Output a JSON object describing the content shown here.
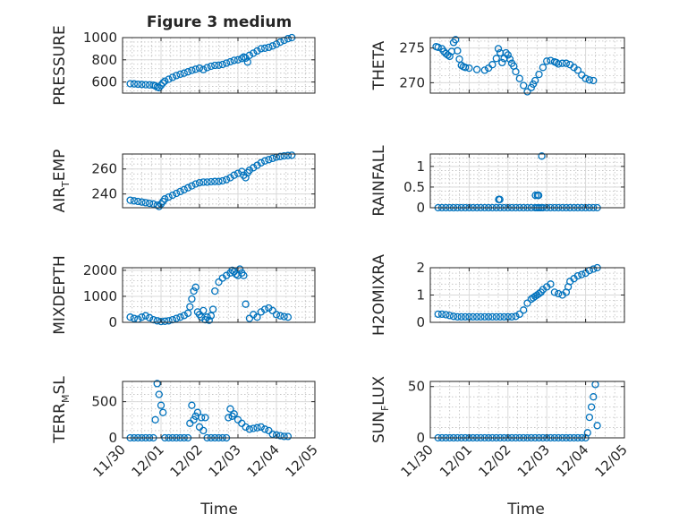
{
  "figure": {
    "title": "Figure 3 medium",
    "time_label": "Time"
  },
  "colors": {
    "marker": "#0072BD",
    "axis": "#262626"
  },
  "chart_data": [
    {
      "type": "scatter",
      "ylabel": "PRESSURE",
      "xlim": [
        "11/30",
        "12/05"
      ],
      "ylim": [
        500,
        1000
      ],
      "yticks": [
        600,
        800,
        1000
      ],
      "xticks": [
        "11/30",
        "12/01",
        "12/02",
        "12/03",
        "12/04",
        "12/05"
      ],
      "show_xticklabels": false,
      "title": "Figure 3 medium",
      "xlabel": "",
      "grid": "on (major + minor)",
      "x": [
        0.2,
        0.3,
        0.4,
        0.5,
        0.6,
        0.7,
        0.8,
        0.85,
        0.9,
        0.95,
        1.0,
        1.05,
        1.1,
        1.2,
        1.3,
        1.4,
        1.5,
        1.6,
        1.7,
        1.8,
        1.9,
        2.0,
        2.1,
        2.2,
        2.3,
        2.4,
        2.5,
        2.6,
        2.7,
        2.8,
        2.9,
        3.0,
        3.1,
        3.15,
        3.2,
        3.25,
        3.3,
        3.4,
        3.5,
        3.6,
        3.7,
        3.8,
        3.9,
        4.0,
        4.1,
        4.2,
        4.3,
        4.4
      ],
      "y": [
        585,
        583,
        580,
        578,
        576,
        574,
        572,
        565,
        555,
        548,
        570,
        592,
        608,
        625,
        642,
        658,
        670,
        680,
        692,
        705,
        715,
        725,
        712,
        730,
        742,
        750,
        752,
        758,
        770,
        782,
        795,
        800,
        812,
        825,
        815,
        780,
        840,
        860,
        880,
        900,
        905,
        912,
        925,
        940,
        960,
        975,
        990,
        1000
      ]
    },
    {
      "type": "scatter",
      "ylabel": "THETA",
      "xlim": [
        "11/30",
        "12/05"
      ],
      "ylim": [
        268.5,
        276.5
      ],
      "yticks": [
        270,
        275
      ],
      "show_xticklabels": false,
      "x": [
        0.15,
        0.2,
        0.3,
        0.35,
        0.4,
        0.45,
        0.5,
        0.55,
        0.6,
        0.65,
        0.7,
        0.75,
        0.8,
        0.85,
        0.9,
        1.0,
        1.2,
        1.4,
        1.5,
        1.6,
        1.7,
        1.75,
        1.8,
        1.85,
        1.9,
        1.95,
        2.0,
        2.05,
        2.1,
        2.15,
        2.2,
        2.3,
        2.4,
        2.5,
        2.6,
        2.65,
        2.7,
        2.8,
        2.9,
        3.0,
        3.1,
        3.2,
        3.25,
        3.3,
        3.4,
        3.5,
        3.6,
        3.7,
        3.8,
        3.9,
        4.0,
        4.1,
        4.2
      ],
      "y": [
        275.2,
        275.1,
        274.9,
        274.5,
        274.2,
        274.0,
        273.8,
        274.5,
        275.8,
        276.2,
        274.6,
        273.4,
        272.5,
        272.3,
        272.2,
        272.1,
        271.9,
        271.8,
        272.1,
        272.6,
        273.5,
        274.9,
        274.3,
        272.9,
        273.5,
        274.3,
        274.0,
        273.4,
        272.8,
        272.4,
        271.6,
        270.6,
        269.6,
        268.7,
        269.3,
        269.8,
        270.3,
        271.2,
        272.2,
        273.1,
        273.2,
        273.0,
        272.9,
        272.7,
        272.8,
        272.8,
        272.6,
        272.2,
        271.8,
        271.1,
        270.6,
        270.4,
        270.3
      ]
    },
    {
      "type": "scatter",
      "ylabel": "AIR_TEMP",
      "xlim": [
        "11/30",
        "12/05"
      ],
      "ylim": [
        229,
        272
      ],
      "yticks": [
        240,
        260
      ],
      "show_xticklabels": false,
      "x": [
        0.2,
        0.3,
        0.4,
        0.5,
        0.6,
        0.7,
        0.8,
        0.9,
        0.95,
        1.0,
        1.05,
        1.1,
        1.2,
        1.3,
        1.4,
        1.5,
        1.6,
        1.7,
        1.8,
        1.9,
        2.0,
        2.1,
        2.2,
        2.3,
        2.4,
        2.5,
        2.6,
        2.7,
        2.8,
        2.9,
        3.0,
        3.1,
        3.15,
        3.2,
        3.25,
        3.3,
        3.4,
        3.5,
        3.6,
        3.7,
        3.8,
        3.9,
        4.0,
        4.1,
        4.2,
        4.3,
        4.4
      ],
      "y": [
        235,
        234.5,
        234,
        233.5,
        233,
        232.5,
        232,
        231,
        230,
        232,
        234,
        236,
        237.5,
        239,
        240.5,
        242,
        243.5,
        245,
        246.5,
        248,
        249,
        249.5,
        249.5,
        249.8,
        250,
        250,
        250.5,
        251.5,
        253,
        255,
        256.5,
        258,
        255,
        253,
        257,
        259,
        261,
        263,
        265,
        266.5,
        267.5,
        268.5,
        269.5,
        270,
        270.5,
        270.8,
        271
      ]
    },
    {
      "type": "scatter",
      "ylabel": "RAINFALL",
      "xlim": [
        "11/30",
        "12/05"
      ],
      "ylim": [
        0,
        1.3
      ],
      "yticks": [
        0,
        0.5,
        1
      ],
      "show_xticklabels": false,
      "x": [
        0.2,
        0.3,
        0.4,
        0.5,
        0.6,
        0.7,
        0.8,
        0.9,
        1.0,
        1.1,
        1.2,
        1.3,
        1.4,
        1.5,
        1.6,
        1.7,
        1.8,
        1.9,
        2.0,
        2.1,
        2.2,
        2.3,
        2.4,
        2.5,
        2.6,
        2.7,
        2.75,
        2.8,
        2.85,
        2.9,
        3.0,
        3.1,
        3.2,
        3.3,
        3.4,
        3.5,
        3.6,
        3.7,
        3.8,
        3.9,
        4.0,
        4.1,
        4.2,
        4.3,
        1.76,
        1.79,
        2.71,
        2.76,
        2.79,
        2.87
      ],
      "y": [
        0,
        0,
        0,
        0,
        0,
        0,
        0,
        0,
        0,
        0,
        0,
        0,
        0,
        0,
        0,
        0,
        0,
        0,
        0,
        0,
        0,
        0,
        0,
        0,
        0,
        0,
        0,
        0,
        0,
        0,
        0,
        0,
        0,
        0,
        0,
        0,
        0,
        0,
        0,
        0,
        0,
        0,
        0,
        0,
        0.2,
        0.2,
        0.3,
        0.3,
        0.3,
        1.25
      ]
    },
    {
      "type": "scatter",
      "ylabel": "MIXDEPTH",
      "xlim": [
        "11/30",
        "12/05"
      ],
      "ylim": [
        0,
        2100
      ],
      "yticks": [
        0,
        1000,
        2000
      ],
      "show_xticklabels": false,
      "x": [
        0.2,
        0.3,
        0.4,
        0.5,
        0.6,
        0.7,
        0.8,
        0.9,
        1.0,
        1.1,
        1.2,
        1.3,
        1.4,
        1.5,
        1.6,
        1.7,
        1.75,
        1.8,
        1.85,
        1.9,
        1.95,
        2.0,
        2.05,
        2.1,
        2.15,
        2.2,
        2.25,
        2.3,
        2.35,
        2.4,
        2.5,
        2.6,
        2.7,
        2.8,
        2.85,
        2.9,
        2.95,
        3.0,
        3.05,
        3.1,
        3.15,
        3.2,
        3.3,
        3.4,
        3.5,
        3.6,
        3.7,
        3.8,
        3.9,
        4.0,
        4.1,
        4.2,
        4.3
      ],
      "y": [
        200,
        150,
        120,
        200,
        250,
        180,
        100,
        60,
        30,
        40,
        60,
        100,
        150,
        200,
        260,
        350,
        600,
        900,
        1200,
        1350,
        400,
        300,
        200,
        450,
        100,
        200,
        80,
        250,
        500,
        1200,
        1550,
        1700,
        1800,
        1900,
        2000,
        1950,
        1850,
        1800,
        2050,
        1900,
        1800,
        700,
        150,
        300,
        200,
        400,
        500,
        550,
        450,
        300,
        250,
        220,
        200
      ]
    },
    {
      "type": "scatter",
      "ylabel": "H2OMIXRA",
      "xlim": [
        "11/30",
        "12/05"
      ],
      "ylim": [
        0,
        2
      ],
      "yticks": [
        0,
        1,
        2
      ],
      "show_xticklabels": false,
      "x": [
        0.2,
        0.3,
        0.4,
        0.5,
        0.6,
        0.7,
        0.8,
        0.9,
        1.0,
        1.1,
        1.2,
        1.3,
        1.4,
        1.5,
        1.6,
        1.7,
        1.8,
        1.9,
        2.0,
        2.1,
        2.2,
        2.3,
        2.4,
        2.5,
        2.6,
        2.65,
        2.7,
        2.75,
        2.8,
        2.85,
        2.9,
        3.0,
        3.1,
        3.2,
        3.3,
        3.4,
        3.5,
        3.55,
        3.6,
        3.7,
        3.8,
        3.9,
        4.0,
        4.1,
        4.2,
        4.3
      ],
      "y": [
        0.3,
        0.3,
        0.28,
        0.25,
        0.22,
        0.2,
        0.2,
        0.2,
        0.2,
        0.2,
        0.2,
        0.2,
        0.2,
        0.2,
        0.2,
        0.2,
        0.2,
        0.2,
        0.2,
        0.2,
        0.22,
        0.3,
        0.45,
        0.7,
        0.85,
        0.9,
        0.95,
        1.0,
        1.05,
        1.1,
        1.2,
        1.3,
        1.4,
        1.1,
        1.05,
        1.0,
        1.1,
        1.3,
        1.5,
        1.6,
        1.7,
        1.75,
        1.8,
        1.9,
        1.95,
        2.0
      ]
    },
    {
      "type": "scatter",
      "ylabel": "TERR_MSL",
      "xlim": [
        "11/30",
        "12/05"
      ],
      "ylim": [
        0,
        780
      ],
      "yticks": [
        0,
        500
      ],
      "show_xticklabels": true,
      "xlabel": "Time",
      "x": [
        0.2,
        0.3,
        0.4,
        0.5,
        0.6,
        0.7,
        0.8,
        0.85,
        0.9,
        0.95,
        1.0,
        1.05,
        1.1,
        1.2,
        1.3,
        1.4,
        1.5,
        1.6,
        1.7,
        1.75,
        1.8,
        1.85,
        1.9,
        1.95,
        2.0,
        2.05,
        2.1,
        2.15,
        2.2,
        2.3,
        2.4,
        2.5,
        2.6,
        2.7,
        2.75,
        2.8,
        2.85,
        2.9,
        3.0,
        3.1,
        3.2,
        3.3,
        3.4,
        3.5,
        3.6,
        3.7,
        3.8,
        3.9,
        4.0,
        4.1,
        4.2,
        4.3
      ],
      "y": [
        0,
        0,
        0,
        0,
        0,
        0,
        0,
        250,
        750,
        600,
        450,
        350,
        0,
        0,
        0,
        0,
        0,
        0,
        0,
        200,
        450,
        250,
        300,
        350,
        150,
        280,
        100,
        280,
        0,
        0,
        0,
        0,
        0,
        0,
        280,
        400,
        300,
        330,
        250,
        200,
        150,
        120,
        130,
        140,
        150,
        120,
        100,
        50,
        40,
        30,
        20,
        20
      ]
    },
    {
      "type": "scatter",
      "ylabel": "SUN_FLUX",
      "xlim": [
        "11/30",
        "12/05"
      ],
      "ylim": [
        0,
        55
      ],
      "yticks": [
        0,
        50
      ],
      "show_xticklabels": true,
      "xlabel": "Time",
      "x": [
        0.2,
        0.3,
        0.4,
        0.5,
        0.6,
        0.7,
        0.8,
        0.9,
        1.0,
        1.1,
        1.2,
        1.3,
        1.4,
        1.5,
        1.6,
        1.7,
        1.8,
        1.9,
        2.0,
        2.1,
        2.2,
        2.3,
        2.4,
        2.5,
        2.6,
        2.7,
        2.8,
        2.9,
        3.0,
        3.1,
        3.2,
        3.3,
        3.4,
        3.5,
        3.6,
        3.7,
        3.8,
        3.9,
        4.0,
        4.05,
        4.1,
        4.15,
        4.2,
        4.25,
        4.3
      ],
      "y": [
        0,
        0,
        0,
        0,
        0,
        0,
        0,
        0,
        0,
        0,
        0,
        0,
        0,
        0,
        0,
        0,
        0,
        0,
        0,
        0,
        0,
        0,
        0,
        0,
        0,
        0,
        0,
        0,
        0,
        0,
        0,
        0,
        0,
        0,
        0,
        0,
        0,
        0,
        0,
        5,
        20,
        30,
        40,
        52,
        12
      ]
    }
  ]
}
